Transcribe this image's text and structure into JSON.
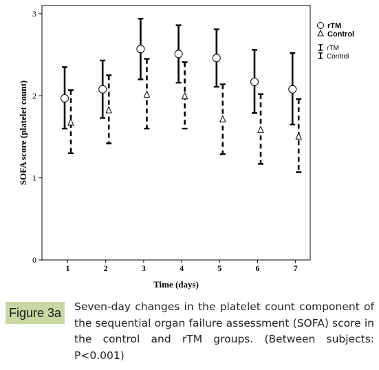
{
  "chart_data": {
    "type": "error-bar",
    "xlabel": "Time (days)",
    "ylabel": "SOFA score (platelet count)",
    "ylim": [
      0,
      3.1
    ],
    "yticks": [
      0,
      1,
      2,
      3
    ],
    "categories": [
      "1",
      "2",
      "3",
      "4",
      "5",
      "6",
      "7"
    ],
    "legend_position": "top-right",
    "series": [
      {
        "name": "rTM",
        "marker": "circle",
        "line": "solid",
        "values": [
          1.97,
          2.08,
          2.57,
          2.51,
          2.46,
          2.17,
          2.08
        ],
        "lower": [
          1.6,
          1.73,
          2.2,
          2.16,
          2.11,
          1.79,
          1.65
        ],
        "upper": [
          2.35,
          2.43,
          2.94,
          2.86,
          2.81,
          2.56,
          2.52
        ]
      },
      {
        "name": "Control",
        "marker": "triangle",
        "line": "dashed",
        "values": [
          1.68,
          1.83,
          2.02,
          2.0,
          1.72,
          1.59,
          1.51
        ],
        "lower": [
          1.3,
          1.42,
          1.6,
          1.6,
          1.29,
          1.17,
          1.07
        ],
        "upper": [
          2.07,
          2.25,
          2.45,
          2.41,
          2.14,
          2.02,
          1.96
        ]
      }
    ],
    "legend_markers": [
      "rTM",
      "Control"
    ],
    "legend_lines": [
      "rTM",
      "Control"
    ]
  },
  "caption": {
    "label": "Figure 3a",
    "text": "Seven-day changes in the platelet count component of the sequential organ failure assessment (SOFA) score in the control and rTM groups. (Between subjects: P<0.001)"
  },
  "colors": {
    "label_bg": "#c9d7a3",
    "ink": "#000000"
  }
}
